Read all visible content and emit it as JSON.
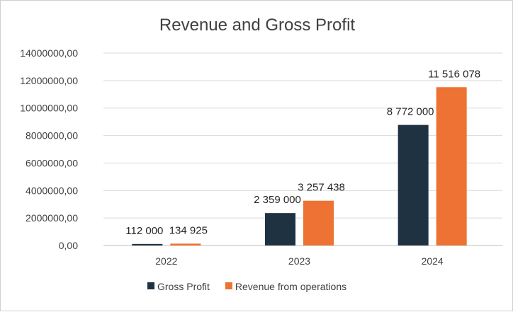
{
  "chart_data": {
    "type": "bar",
    "title": "Revenue and Gross Profit",
    "categories": [
      "2022",
      "2023",
      "2024"
    ],
    "series": [
      {
        "name": "Gross Profit",
        "color": "#1f3242",
        "values": [
          112000,
          2359000,
          8772000
        ],
        "data_labels": [
          "112 000",
          "2 359 000",
          "8 772 000"
        ]
      },
      {
        "name": "Revenue from operations",
        "color": "#ed7233",
        "values": [
          134925,
          3257438,
          11516078
        ],
        "data_labels": [
          "134 925",
          "3 257 438",
          "11 516 078"
        ]
      }
    ],
    "ylim": [
      0,
      14000000
    ],
    "y_ticks": [
      0,
      2000000,
      4000000,
      6000000,
      8000000,
      10000000,
      12000000,
      14000000
    ],
    "y_tick_labels": [
      "0,00",
      "2000000,00",
      "4000000,00",
      "6000000,00",
      "8000000,00",
      "10000000,00",
      "12000000,00",
      "14000000,00"
    ],
    "grid": true,
    "legend": "bottom"
  }
}
